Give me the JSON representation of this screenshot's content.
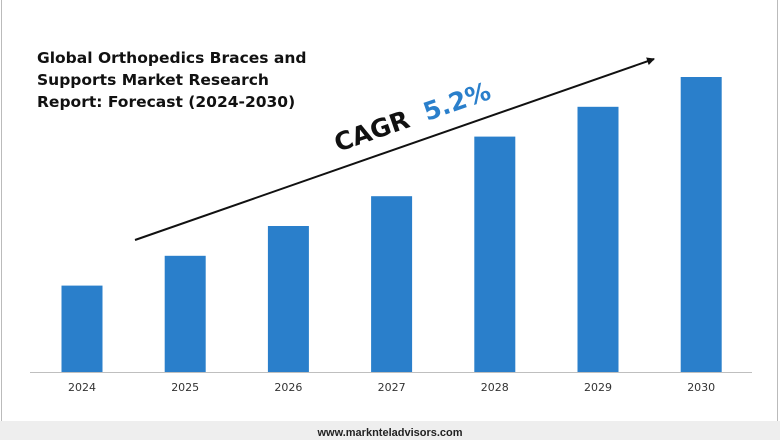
{
  "chart_data": {
    "type": "bar",
    "title_lines": [
      "Global Orthopedics Braces and",
      "Supports Market Research",
      "Report: Forecast (2024-2030)"
    ],
    "categories": [
      "2024",
      "2025",
      "2026",
      "2027",
      "2028",
      "2029",
      "2030"
    ],
    "values": [
      29,
      39,
      49,
      59,
      79,
      89,
      99
    ],
    "ylim": [
      0,
      100
    ],
    "xlabel": "",
    "ylabel": "",
    "grid": false,
    "bar_color": "#2A7FCB",
    "annotation": {
      "label": "CAGR",
      "value": "5.2%",
      "label_color": "#111111",
      "value_color": "#2A7FCB"
    }
  },
  "footer": {
    "url": "www.marknteladvisors.com"
  }
}
